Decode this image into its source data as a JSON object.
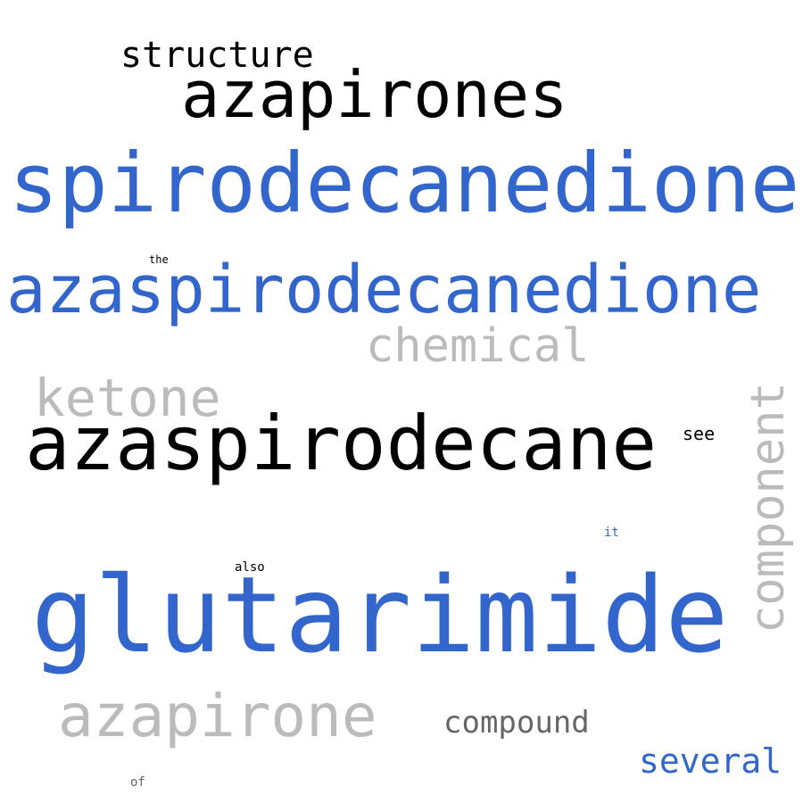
{
  "words": {
    "structure": "structure",
    "azapirones": "azapirones",
    "spirodecanedione": "spirodecanedione",
    "the": "the",
    "azaspirodecanedione": "azaspirodecanedione",
    "chemical": "chemical",
    "ketone": "ketone",
    "azaspirodecane": "azaspirodecane",
    "see": "see",
    "component": "component",
    "it": "it",
    "also": "also",
    "glutarimide": "glutarimide",
    "azapirone": "azapirone",
    "compound": "compound",
    "several": "several",
    "of": "of"
  },
  "colors": {
    "blue": "#3366cc",
    "black": "#000000",
    "light_gray": "#bbbbbb",
    "dark_gray": "#666666",
    "background": "#ffffff"
  }
}
